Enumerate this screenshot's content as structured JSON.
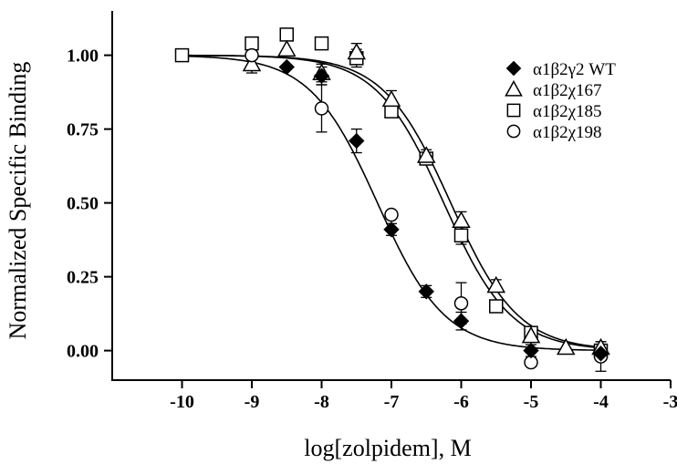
{
  "chart_data": {
    "type": "scatter",
    "xlabel": "log[zolpidem], M",
    "ylabel": "Normalized Specific Binding",
    "xlim": [
      -11,
      -3
    ],
    "ylim": [
      -0.1,
      1.15
    ],
    "x_ticks": [
      -10,
      -9,
      -8,
      -7,
      -6,
      -5,
      -4,
      -3
    ],
    "x_tick_labels": [
      "-10",
      "-9",
      "-8",
      "-7",
      "-6",
      "-5",
      "-4",
      "-3"
    ],
    "y_ticks": [
      0,
      0.25,
      0.5,
      0.75,
      1.0
    ],
    "y_tick_labels": [
      "0.00",
      "0.25",
      "0.50",
      "0.75",
      "1.00"
    ],
    "grid": false,
    "legend_position": "top-right",
    "series": [
      {
        "name": "α1β2γ2 WT",
        "marker": "diamond-filled",
        "points": [
          {
            "x": -8.5,
            "y": 0.96,
            "err": 0.0
          },
          {
            "x": -8.0,
            "y": 0.93,
            "err": 0.03
          },
          {
            "x": -7.5,
            "y": 0.71,
            "err": 0.04
          },
          {
            "x": -7.0,
            "y": 0.41,
            "err": 0.02
          },
          {
            "x": -6.5,
            "y": 0.2,
            "err": 0.02
          },
          {
            "x": -6.0,
            "y": 0.1,
            "err": 0.03
          },
          {
            "x": -5.0,
            "y": 0.0,
            "err": 0.02
          },
          {
            "x": -4.0,
            "y": -0.01,
            "err": 0.02
          }
        ]
      },
      {
        "name": "α1β2χ167",
        "marker": "triangle-open",
        "points": [
          {
            "x": -9.0,
            "y": 0.97,
            "err": 0.03
          },
          {
            "x": -8.5,
            "y": 1.02,
            "err": 0.0
          },
          {
            "x": -8.0,
            "y": 0.94,
            "err": 0.03
          },
          {
            "x": -7.5,
            "y": 1.01,
            "err": 0.03
          },
          {
            "x": -7.0,
            "y": 0.85,
            "err": 0.03
          },
          {
            "x": -6.5,
            "y": 0.66,
            "err": 0.02
          },
          {
            "x": -6.0,
            "y": 0.44,
            "err": 0.03
          },
          {
            "x": -5.5,
            "y": 0.22,
            "err": 0.02
          },
          {
            "x": -5.0,
            "y": 0.05,
            "err": 0.02
          },
          {
            "x": -4.5,
            "y": 0.01,
            "err": 0.0
          },
          {
            "x": -4.0,
            "y": 0.01,
            "err": 0.02
          }
        ]
      },
      {
        "name": "α1β2χ185",
        "marker": "square-open",
        "points": [
          {
            "x": -10.0,
            "y": 1.0,
            "err": 0.0
          },
          {
            "x": -9.0,
            "y": 1.04,
            "err": 0.0
          },
          {
            "x": -8.5,
            "y": 1.07,
            "err": 0.0
          },
          {
            "x": -8.0,
            "y": 1.04,
            "err": 0.0
          },
          {
            "x": -7.5,
            "y": 0.99,
            "err": 0.03
          },
          {
            "x": -7.0,
            "y": 0.81,
            "err": 0.02
          },
          {
            "x": -6.5,
            "y": 0.65,
            "err": 0.02
          },
          {
            "x": -6.0,
            "y": 0.39,
            "err": 0.03
          },
          {
            "x": -5.5,
            "y": 0.15,
            "err": 0.02
          },
          {
            "x": -5.0,
            "y": 0.06,
            "err": 0.0
          },
          {
            "x": -4.0,
            "y": 0.0,
            "err": 0.02
          }
        ]
      },
      {
        "name": "α1β2χ198",
        "marker": "circle-open",
        "points": [
          {
            "x": -9.0,
            "y": 1.0,
            "err": 0.0
          },
          {
            "x": -8.0,
            "y": 0.82,
            "err": 0.08
          },
          {
            "x": -7.0,
            "y": 0.46,
            "err": 0.0
          },
          {
            "x": -6.0,
            "y": 0.16,
            "err": 0.07
          },
          {
            "x": -5.0,
            "y": -0.04,
            "err": 0.0
          },
          {
            "x": -4.0,
            "y": -0.02,
            "err": 0.05
          }
        ]
      }
    ],
    "fit_curves": [
      {
        "top": 1.0,
        "bottom": 0.0,
        "logEC50": -7.2,
        "hill": 0.9
      },
      {
        "top": 1.0,
        "bottom": 0.0,
        "logEC50": -6.25,
        "hill": 0.9
      },
      {
        "top": 1.0,
        "bottom": 0.0,
        "logEC50": -6.15,
        "hill": 0.9
      }
    ]
  }
}
